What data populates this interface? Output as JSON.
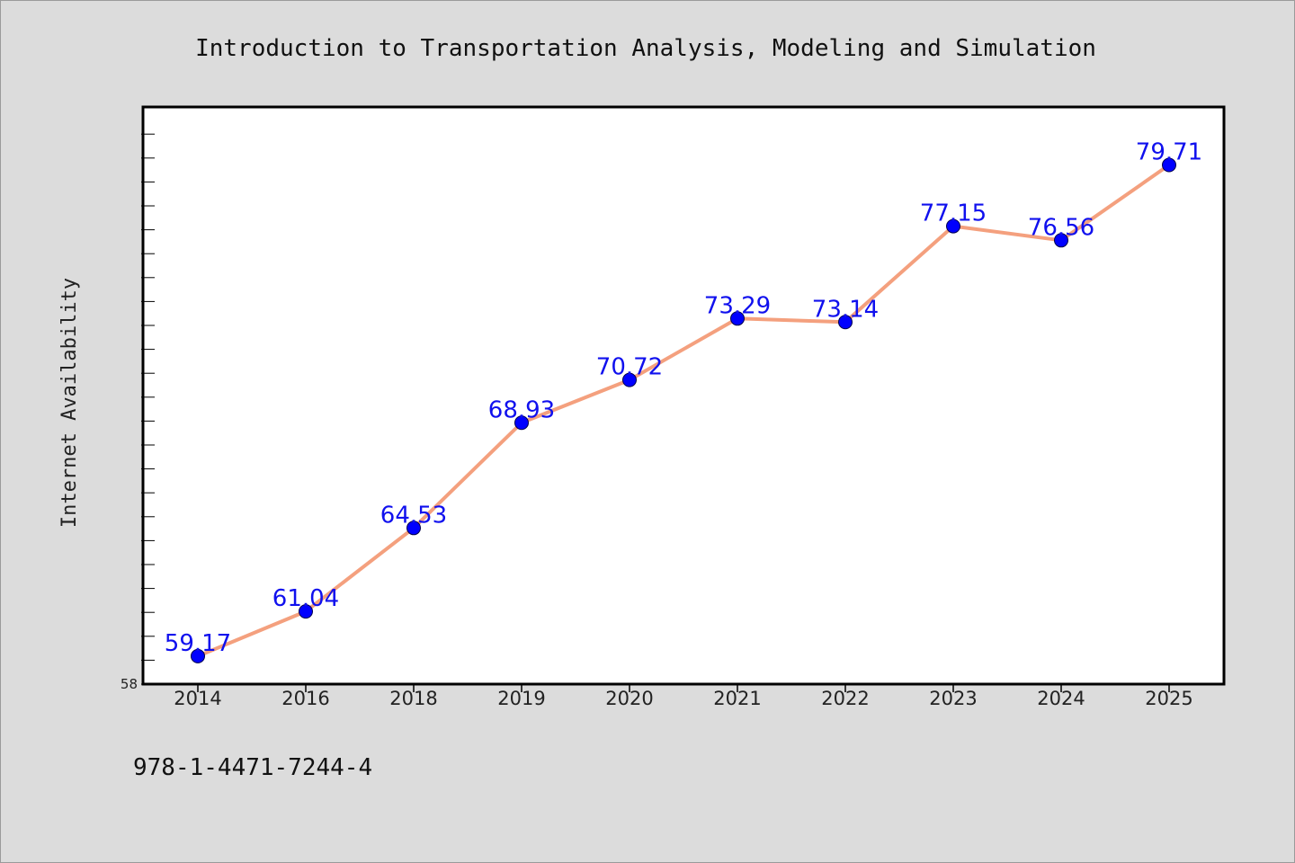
{
  "chart_data": {
    "type": "line",
    "title": "Introduction to Transportation Analysis, Modeling and Simulation",
    "xlabel": "",
    "ylabel": "Internet Availability",
    "categories": [
      "2014",
      "2016",
      "2018",
      "2019",
      "2020",
      "2021",
      "2022",
      "2023",
      "2024",
      "2025"
    ],
    "series": [
      {
        "values": [
          59.17,
          61.04,
          64.53,
          68.93,
          70.72,
          73.29,
          73.14,
          77.15,
          76.56,
          79.71
        ],
        "labels": [
          "59.17",
          "61.04",
          "64.53",
          "68.93",
          "70.72",
          "73.29",
          "73.14",
          "77.15",
          "76.56",
          "79.71"
        ]
      }
    ],
    "ylim": [
      58,
      82
    ],
    "yticks": [
      "58"
    ],
    "grid": false,
    "colors": {
      "line": "#f4a07e",
      "marker": "#0000ff",
      "label": "#1010ee",
      "background": "#dcdcdc",
      "plot_background": "#ffffff"
    }
  },
  "footnote": "978-1-4471-7244-4"
}
